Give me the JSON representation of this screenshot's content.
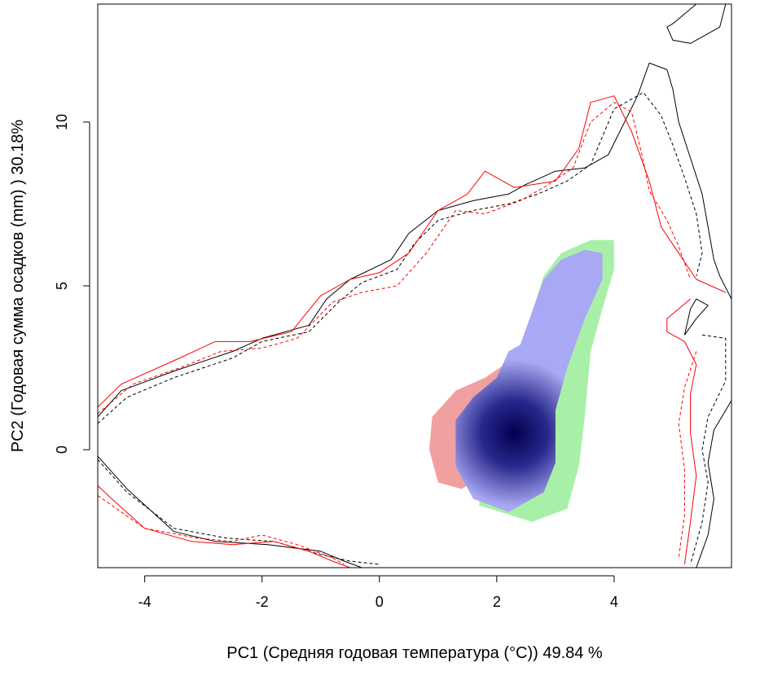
{
  "chart_data": {
    "type": "contour-density",
    "title": "",
    "xlabel": "PC1 (Средняя годовая температура (°C)) 49.84 %",
    "ylabel": "PC2 (Годовая сумма осадков  (mm) ) 30.18%",
    "xlim": [
      -4.8,
      6.0
    ],
    "ylim": [
      -3.6,
      13.6
    ],
    "xticks": [
      -4,
      -2,
      0,
      2,
      4
    ],
    "yticks": [
      0,
      5,
      10
    ],
    "grid": false,
    "legend": "none",
    "colors": {
      "black_solid": "#000000",
      "black_dashed": "#000000",
      "red_solid": "#ff0000",
      "red_dashed": "#ff0000",
      "red_region": "#f0a0a0",
      "green_region": "#a8f0a8",
      "blue_density_low": "#a8a8f4",
      "blue_density_high": "#000050"
    },
    "regions": [
      {
        "name": "red",
        "points": [
          [
            1.0,
            -1.0
          ],
          [
            0.85,
            0.0
          ],
          [
            0.9,
            1.0
          ],
          [
            1.3,
            1.8
          ],
          [
            1.8,
            2.2
          ],
          [
            2.3,
            2.8
          ],
          [
            2.4,
            1.5
          ],
          [
            2.0,
            -0.6
          ],
          [
            1.4,
            -1.2
          ]
        ]
      },
      {
        "name": "green",
        "points": [
          [
            1.7,
            -1.7
          ],
          [
            2.6,
            -2.2
          ],
          [
            3.2,
            -1.8
          ],
          [
            3.4,
            -0.5
          ],
          [
            3.5,
            1.0
          ],
          [
            3.6,
            3.0
          ],
          [
            3.8,
            4.3
          ],
          [
            4.0,
            5.5
          ],
          [
            4.0,
            6.4
          ],
          [
            3.6,
            6.4
          ],
          [
            3.1,
            6.0
          ],
          [
            2.8,
            5.3
          ],
          [
            2.6,
            4.2
          ],
          [
            2.4,
            3.2
          ],
          [
            2.3,
            2.8
          ],
          [
            2.0,
            2.1
          ],
          [
            1.8,
            1.0
          ]
        ]
      },
      {
        "name": "blue",
        "points": [
          [
            1.3,
            -0.5
          ],
          [
            1.3,
            0.9
          ],
          [
            1.6,
            1.6
          ],
          [
            2.0,
            2.2
          ],
          [
            2.2,
            3.0
          ],
          [
            2.4,
            3.2
          ],
          [
            2.6,
            4.2
          ],
          [
            2.8,
            5.2
          ],
          [
            3.1,
            5.8
          ],
          [
            3.5,
            6.1
          ],
          [
            3.8,
            6.0
          ],
          [
            3.8,
            5.2
          ],
          [
            3.5,
            4.0
          ],
          [
            3.2,
            2.5
          ],
          [
            3.0,
            1.2
          ],
          [
            3.0,
            -0.4
          ],
          [
            2.8,
            -1.3
          ],
          [
            2.2,
            -1.9
          ],
          [
            1.6,
            -1.5
          ]
        ]
      }
    ],
    "density_peak": [
      2.3,
      0.5
    ],
    "series": [
      {
        "style": "solid",
        "color": "black",
        "points": [
          [
            -4.8,
            1.0
          ],
          [
            -4.4,
            1.8
          ],
          [
            -3.5,
            2.4
          ],
          [
            -2.5,
            3.0
          ],
          [
            -2.0,
            3.4
          ],
          [
            -1.2,
            3.8
          ],
          [
            -0.9,
            4.6
          ],
          [
            -0.5,
            5.2
          ],
          [
            0.2,
            5.8
          ],
          [
            0.5,
            6.6
          ],
          [
            1.0,
            7.3
          ],
          [
            1.6,
            7.6
          ],
          [
            2.2,
            7.8
          ],
          [
            2.5,
            8.1
          ],
          [
            3.0,
            8.5
          ],
          [
            3.5,
            8.6
          ],
          [
            3.9,
            9.0
          ],
          [
            4.4,
            10.8
          ],
          [
            4.6,
            11.8
          ],
          [
            4.9,
            11.6
          ],
          [
            5.0,
            11.0
          ],
          [
            5.1,
            10.0
          ],
          [
            5.3,
            8.9
          ],
          [
            5.5,
            7.8
          ],
          [
            5.6,
            6.8
          ],
          [
            5.7,
            5.8
          ],
          [
            5.8,
            5.3
          ],
          [
            6.0,
            4.6
          ]
        ]
      },
      {
        "style": "solid",
        "color": "black",
        "points": [
          [
            5.0,
            13.0
          ],
          [
            5.4,
            13.6
          ],
          [
            5.9,
            13.6
          ],
          [
            5.8,
            12.9
          ],
          [
            5.3,
            12.4
          ],
          [
            5.0,
            12.5
          ],
          [
            4.9,
            12.9
          ],
          [
            5.0,
            13.0
          ]
        ]
      },
      {
        "style": "solid",
        "color": "black",
        "points": [
          [
            5.2,
            3.5
          ],
          [
            5.3,
            4.3
          ],
          [
            5.4,
            4.6
          ],
          [
            5.6,
            4.4
          ],
          [
            5.4,
            4.0
          ],
          [
            5.2,
            3.5
          ]
        ]
      },
      {
        "style": "solid",
        "color": "black",
        "points": [
          [
            -4.8,
            -0.2
          ],
          [
            -4.3,
            -1.2
          ],
          [
            -3.5,
            -2.5
          ],
          [
            -2.8,
            -2.8
          ],
          [
            -1.9,
            -2.9
          ],
          [
            -1.0,
            -3.1
          ],
          [
            -0.6,
            -3.4
          ],
          [
            -0.3,
            -3.6
          ]
        ]
      },
      {
        "style": "solid",
        "color": "black",
        "points": [
          [
            6.0,
            1.5
          ],
          [
            5.7,
            0.6
          ],
          [
            5.6,
            -0.4
          ],
          [
            5.7,
            -1.5
          ],
          [
            5.6,
            -2.6
          ],
          [
            5.4,
            -3.6
          ]
        ]
      },
      {
        "style": "dashed",
        "color": "black",
        "points": [
          [
            -4.8,
            0.8
          ],
          [
            -4.3,
            1.6
          ],
          [
            -3.5,
            2.2
          ],
          [
            -2.5,
            2.8
          ],
          [
            -2.0,
            3.3
          ],
          [
            -1.2,
            3.6
          ],
          [
            -0.7,
            4.5
          ],
          [
            -0.3,
            5.1
          ],
          [
            0.3,
            5.5
          ],
          [
            0.6,
            6.3
          ],
          [
            1.0,
            7.0
          ],
          [
            1.6,
            7.3
          ],
          [
            2.2,
            7.5
          ],
          [
            2.7,
            7.8
          ],
          [
            3.2,
            8.2
          ],
          [
            3.6,
            8.7
          ],
          [
            4.0,
            10.4
          ],
          [
            4.5,
            10.9
          ],
          [
            4.8,
            10.2
          ],
          [
            5.0,
            9.3
          ],
          [
            5.2,
            8.3
          ],
          [
            5.4,
            7.2
          ],
          [
            5.5,
            6.0
          ],
          [
            5.4,
            5.3
          ]
        ]
      },
      {
        "style": "dashed",
        "color": "black",
        "points": [
          [
            5.5,
            3.5
          ],
          [
            5.9,
            3.4
          ],
          [
            5.9,
            2.1
          ],
          [
            5.6,
            1.0
          ],
          [
            5.5,
            0.0
          ],
          [
            5.6,
            -1.0
          ],
          [
            5.5,
            -2.2
          ],
          [
            5.3,
            -3.5
          ]
        ]
      },
      {
        "style": "dashed",
        "color": "black",
        "points": [
          [
            -4.8,
            -0.3
          ],
          [
            -4.3,
            -1.3
          ],
          [
            -3.5,
            -2.4
          ],
          [
            -2.6,
            -2.7
          ],
          [
            -1.8,
            -2.8
          ],
          [
            -1.0,
            -3.2
          ],
          [
            -0.5,
            -3.4
          ],
          [
            0.0,
            -3.5
          ]
        ]
      },
      {
        "style": "solid",
        "color": "red",
        "points": [
          [
            -4.8,
            1.3
          ],
          [
            -4.4,
            2.0
          ],
          [
            -3.4,
            2.8
          ],
          [
            -2.8,
            3.3
          ],
          [
            -2.2,
            3.3
          ],
          [
            -1.5,
            3.6
          ],
          [
            -1.0,
            4.7
          ],
          [
            -0.5,
            5.2
          ],
          [
            0.0,
            5.4
          ],
          [
            0.5,
            6.0
          ],
          [
            1.0,
            7.3
          ],
          [
            1.5,
            7.8
          ],
          [
            1.8,
            8.5
          ],
          [
            2.3,
            8.0
          ],
          [
            3.0,
            8.2
          ],
          [
            3.4,
            9.2
          ],
          [
            3.6,
            10.6
          ],
          [
            4.0,
            10.8
          ],
          [
            4.3,
            9.7
          ],
          [
            4.6,
            8.2
          ],
          [
            4.8,
            6.8
          ],
          [
            5.1,
            6.0
          ],
          [
            5.4,
            5.2
          ],
          [
            5.9,
            4.8
          ]
        ]
      },
      {
        "style": "solid",
        "color": "red",
        "points": [
          [
            5.3,
            4.6
          ],
          [
            4.9,
            4.0
          ],
          [
            4.9,
            3.6
          ],
          [
            5.2,
            3.3
          ],
          [
            5.4,
            2.6
          ],
          [
            5.3,
            1.7
          ],
          [
            5.3,
            0.5
          ],
          [
            5.4,
            -0.8
          ],
          [
            5.3,
            -2.2
          ],
          [
            5.2,
            -3.5
          ]
        ]
      },
      {
        "style": "solid",
        "color": "red",
        "points": [
          [
            -4.8,
            -1.1
          ],
          [
            -4.5,
            -1.6
          ],
          [
            -4.0,
            -2.4
          ],
          [
            -3.2,
            -2.8
          ],
          [
            -2.5,
            -2.9
          ],
          [
            -1.8,
            -2.8
          ],
          [
            -1.2,
            -3.1
          ],
          [
            -0.8,
            -3.4
          ],
          [
            -0.5,
            -3.6
          ]
        ]
      },
      {
        "style": "dashed",
        "color": "red",
        "points": [
          [
            -4.8,
            1.1
          ],
          [
            -4.2,
            2.0
          ],
          [
            -3.4,
            2.5
          ],
          [
            -2.7,
            3.0
          ],
          [
            -2.0,
            3.1
          ],
          [
            -1.4,
            3.4
          ],
          [
            -0.8,
            4.5
          ],
          [
            -0.3,
            4.8
          ],
          [
            0.3,
            5.0
          ],
          [
            0.8,
            6.0
          ],
          [
            1.3,
            7.3
          ],
          [
            1.8,
            7.2
          ],
          [
            2.4,
            7.6
          ],
          [
            2.8,
            8.0
          ],
          [
            3.3,
            8.6
          ],
          [
            3.6,
            10.0
          ],
          [
            4.0,
            10.6
          ],
          [
            4.3,
            10.3
          ],
          [
            4.5,
            8.8
          ],
          [
            4.6,
            7.9
          ],
          [
            4.9,
            7.0
          ],
          [
            5.1,
            6.2
          ],
          [
            5.3,
            5.2
          ]
        ]
      },
      {
        "style": "dashed",
        "color": "red",
        "points": [
          [
            5.4,
            3.0
          ],
          [
            5.2,
            1.9
          ],
          [
            5.1,
            0.8
          ],
          [
            5.2,
            -0.6
          ],
          [
            5.2,
            -2.0
          ],
          [
            5.1,
            -3.3
          ]
        ]
      },
      {
        "style": "dashed",
        "color": "red",
        "points": [
          [
            -4.8,
            -1.4
          ],
          [
            -4.0,
            -2.4
          ],
          [
            -3.1,
            -2.7
          ],
          [
            -2.5,
            -2.8
          ],
          [
            -2.0,
            -2.6
          ],
          [
            -1.4,
            -2.9
          ],
          [
            -0.8,
            -3.3
          ],
          [
            -0.6,
            -3.5
          ]
        ]
      }
    ]
  }
}
